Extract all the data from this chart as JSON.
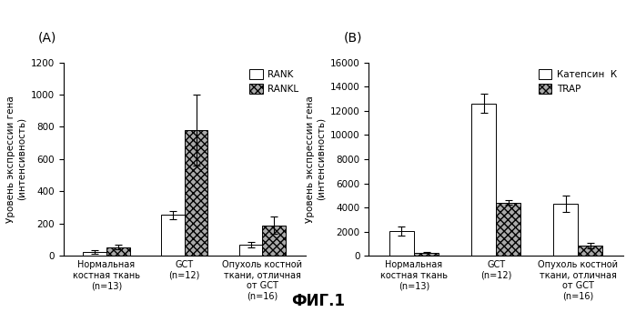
{
  "panel_A": {
    "panel_label": "(А)",
    "ylabel": "Уровень экспрессии гена\n(интенсивность)",
    "ylim": [
      0,
      1200
    ],
    "yticks": [
      0,
      200,
      400,
      600,
      800,
      1000,
      1200
    ],
    "categories": [
      "Нормальная\nкостная ткань\n(n=13)",
      "GCT\n(n=12)",
      "Опухоль костной\nткани, отличная\nот GCT\n(n=16)"
    ],
    "bar1_label": "RANK",
    "bar2_label": "RANKL",
    "bar1_values": [
      25,
      255,
      70
    ],
    "bar2_values": [
      55,
      780,
      190
    ],
    "bar1_errors": [
      10,
      25,
      15
    ],
    "bar2_errors": [
      15,
      220,
      55
    ],
    "bar1_color": "white",
    "bar2_color": "#aaaaaa",
    "bar2_hatch": "xxxx",
    "bar_edgecolor": "black"
  },
  "panel_B": {
    "panel_label": "(В)",
    "ylabel": "Уровень экспрессии гена\n(интенсивность)",
    "ylim": [
      0,
      16000
    ],
    "yticks": [
      0,
      2000,
      4000,
      6000,
      8000,
      10000,
      12000,
      14000,
      16000
    ],
    "categories": [
      "Нормальная\nкостная ткань\n(n=13)",
      "GCT\n(n=12)",
      "Опухоль костной\nткани, отличная\nот GCT\n(n=16)"
    ],
    "bar1_label": "Катепсин  К",
    "bar2_label": "TRAP",
    "bar1_values": [
      2050,
      12600,
      4300
    ],
    "bar2_values": [
      280,
      4400,
      850
    ],
    "bar1_errors": [
      350,
      800,
      700
    ],
    "bar2_errors": [
      60,
      200,
      200
    ],
    "bar1_color": "white",
    "bar2_color": "#aaaaaa",
    "bar2_hatch": "xxxx",
    "bar_edgecolor": "black"
  },
  "fig_label": "ФИГ.1",
  "background_color": "white",
  "fontsize_panel_label": 10,
  "fontsize_ylabel": 7.5,
  "fontsize_tick": 7.5,
  "fontsize_legend": 7.5,
  "fontsize_xticklabel": 7,
  "fontsize_figlabel": 12,
  "bar_width": 0.3
}
